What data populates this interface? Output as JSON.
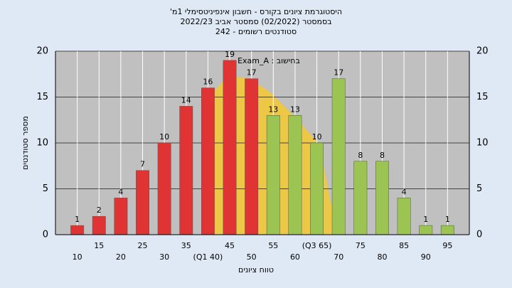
{
  "chart_data": {
    "type": "bar",
    "title": [
      "היסטוגרמת ציונים בקורס - חשבון אינפיניטסימלי 1מ'",
      "בסמסטר (02/2022)  סמסטר אביב 2022/23",
      "סטודנטים רשומים - 242"
    ],
    "annotation": "בחישוב : Exam_A",
    "y_label": "מספר סטודנטים",
    "x_label": "טווח ציונים",
    "categories": [
      "10",
      "15",
      "20",
      "25",
      "30",
      "35",
      "(Q1 40)",
      "45",
      "50",
      "55",
      "60",
      "(Q3 65)",
      "70",
      "75",
      "80",
      "85",
      "90",
      "95"
    ],
    "values": [
      1,
      2,
      4,
      7,
      10,
      14,
      16,
      19,
      17,
      13,
      13,
      10,
      17,
      8,
      8,
      4,
      1,
      1
    ],
    "colors": [
      "#e03434",
      "#e03434",
      "#e03434",
      "#e03434",
      "#e03434",
      "#e03434",
      "#e03434",
      "#e03434",
      "#e03434",
      "#9cc452",
      "#9cc452",
      "#9cc452",
      "#9cc452",
      "#9cc452",
      "#9cc452",
      "#9cc452",
      "#9cc452",
      "#9cc452"
    ],
    "ylim": [
      0,
      20
    ],
    "yticks": [
      0,
      5,
      10,
      15,
      20
    ],
    "grid": true
  }
}
